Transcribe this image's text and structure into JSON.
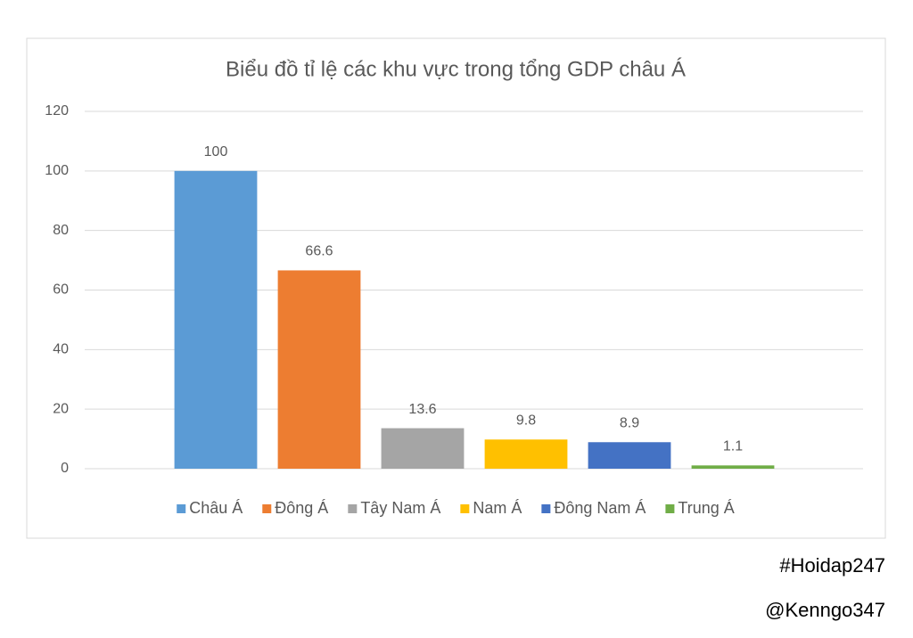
{
  "chart_data": {
    "type": "bar",
    "title": "Biểu đồ tỉ lệ các khu vực trong tổng GDP châu Á",
    "categories": [
      "Châu Á",
      "Đông Á",
      "Tây Nam Á",
      "Nam Á",
      "Đông Nam Á",
      "Trung Á"
    ],
    "values": [
      100,
      66.6,
      13.6,
      9.8,
      8.9,
      1.1
    ],
    "colors": [
      "#5b9bd5",
      "#ed7d31",
      "#a5a5a5",
      "#ffc000",
      "#4472c4",
      "#70ad47"
    ],
    "ylim": [
      0,
      120
    ],
    "yticks": [
      0,
      20,
      40,
      60,
      80,
      100,
      120
    ],
    "grid": true,
    "legend": "bottom"
  },
  "footer": [
    "#Hoidap247",
    "@Kenngo347"
  ]
}
